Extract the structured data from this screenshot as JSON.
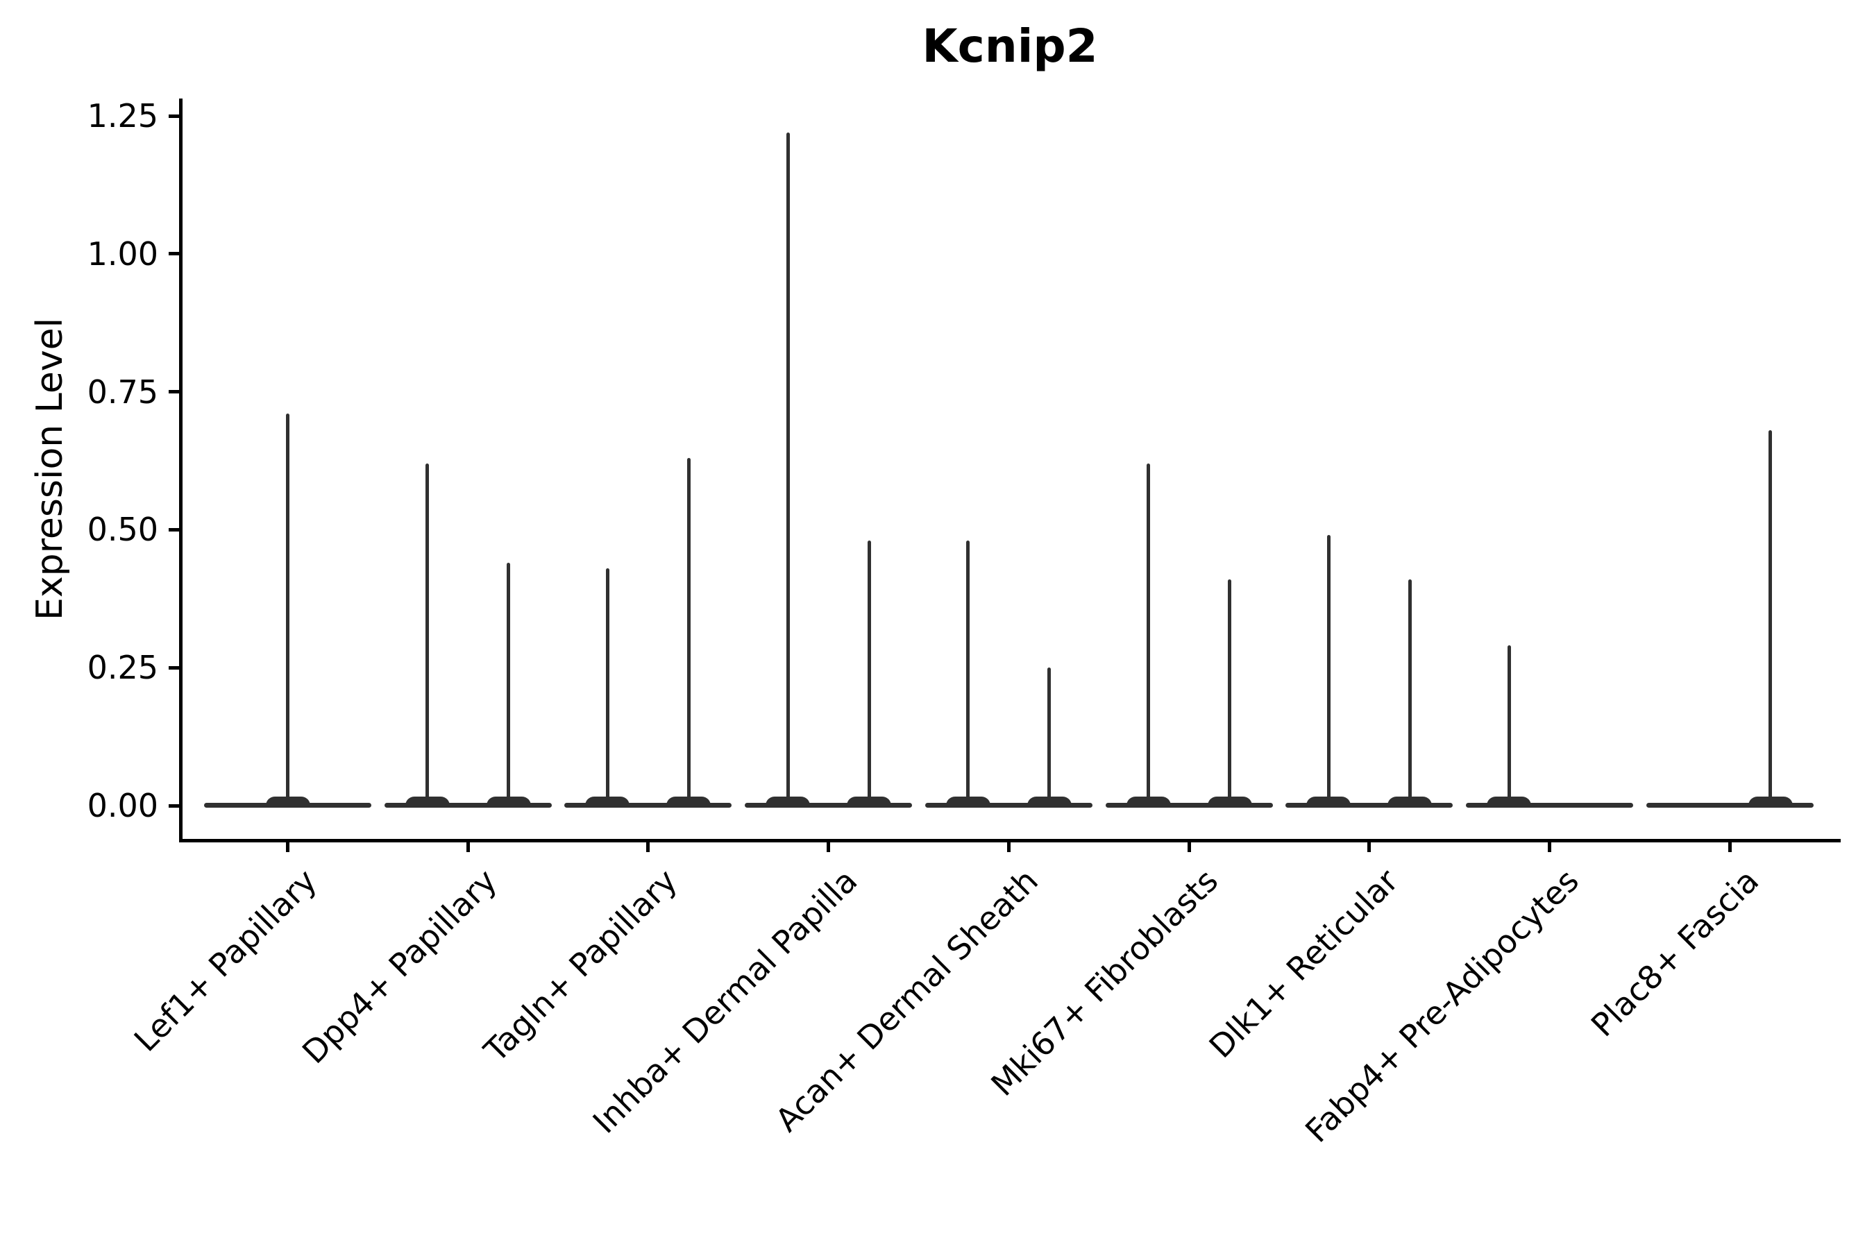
{
  "chart_data": {
    "type": "violin",
    "title": "Kcnip2",
    "xlabel": "",
    "ylabel": "Expression Level",
    "ylim": [
      0,
      1.25
    ],
    "grid": false,
    "legend": "none",
    "yticks": [
      {
        "label": "1.25",
        "value": 1.25
      },
      {
        "label": "1.00",
        "value": 1.0
      },
      {
        "label": "0.75",
        "value": 0.75
      },
      {
        "label": "0.50",
        "value": 0.5
      },
      {
        "label": "0.25",
        "value": 0.25
      },
      {
        "label": "0.00",
        "value": 0.0
      }
    ],
    "baseline_value": 0.0,
    "categories": [
      {
        "label": "Lef1+ Papillary",
        "violins": [
          {
            "position": "center",
            "max": 0.71
          }
        ]
      },
      {
        "label": "Dpp4+ Papillary",
        "violins": [
          {
            "position": "left",
            "max": 0.62
          },
          {
            "position": "right",
            "max": 0.44
          }
        ]
      },
      {
        "label": "Tagln+ Papillary",
        "violins": [
          {
            "position": "left",
            "max": 0.43
          },
          {
            "position": "right",
            "max": 0.63
          }
        ]
      },
      {
        "label": "Inhba+ Dermal Papilla",
        "violins": [
          {
            "position": "left",
            "max": 1.22
          },
          {
            "position": "right",
            "max": 0.48
          }
        ]
      },
      {
        "label": "Acan+ Dermal Sheath",
        "violins": [
          {
            "position": "left",
            "max": 0.48
          },
          {
            "position": "right",
            "max": 0.25
          }
        ]
      },
      {
        "label": "Mki67+ Fibroblasts",
        "violins": [
          {
            "position": "left",
            "max": 0.62
          },
          {
            "position": "right",
            "max": 0.41
          }
        ]
      },
      {
        "label": "Dlk1+ Reticular",
        "violins": [
          {
            "position": "left",
            "max": 0.49
          },
          {
            "position": "right",
            "max": 0.41
          }
        ]
      },
      {
        "label": "Fabp4+ Pre-Adipocytes",
        "violins": [
          {
            "position": "left",
            "max": 0.29
          },
          {
            "position": "right",
            "max": 0.0
          }
        ]
      },
      {
        "label": "Plac8+ Fascia",
        "violins": [
          {
            "position": "left",
            "max": 0.0
          },
          {
            "position": "right",
            "max": 0.68
          }
        ]
      }
    ],
    "colors": {
      "violin": "#303030",
      "axis": "#000000",
      "text": "#000000",
      "background": "#ffffff"
    }
  }
}
